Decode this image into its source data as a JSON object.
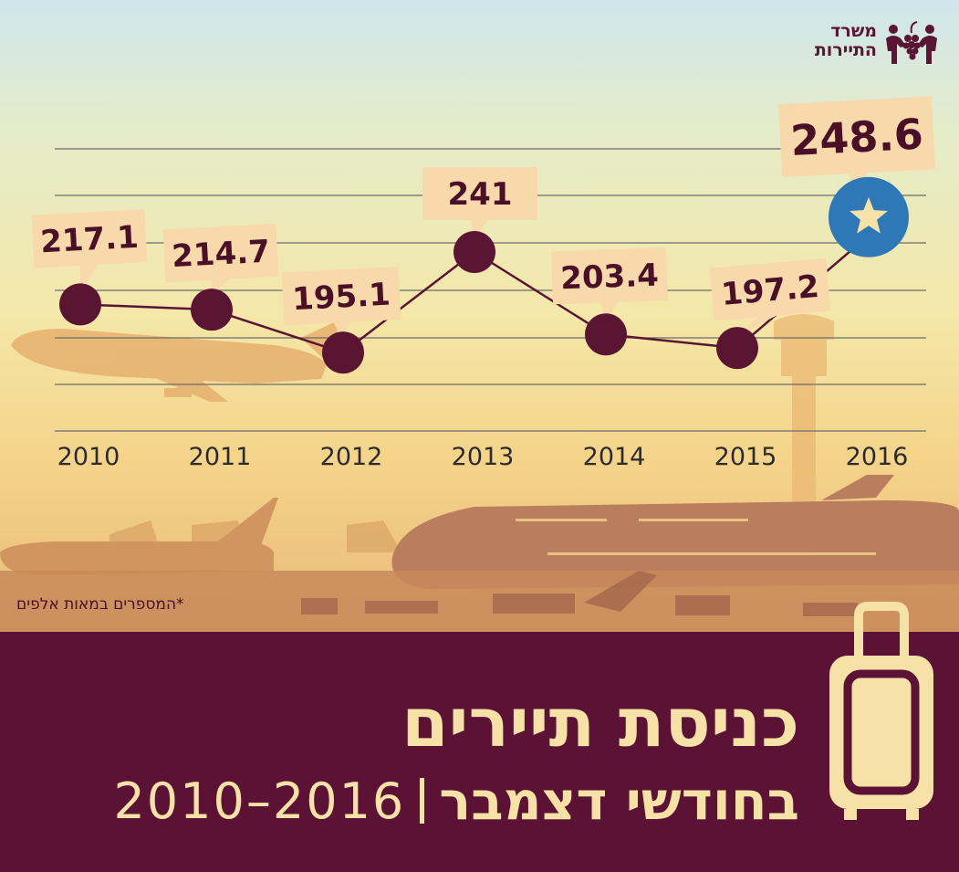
{
  "logo": {
    "line1": "משרד",
    "line2": "התיירות"
  },
  "chart_data": {
    "type": "line",
    "title": "כניסת תיירים",
    "subtitle": "בחודשי דצמבר",
    "year_range": "2010–2016",
    "categories": [
      "2010",
      "2011",
      "2012",
      "2013",
      "2014",
      "2015",
      "2016"
    ],
    "values": [
      217.1,
      214.7,
      195.1,
      241,
      203.4,
      197.2,
      248.6
    ],
    "labels": [
      "217.1",
      "214.7",
      "195.1",
      "241",
      "203.4",
      "197.2",
      "248.6"
    ],
    "footnote": "*המספרים במאות אלפים",
    "grid": true,
    "highlight_last": true
  },
  "colors": {
    "marker": "#5a1533",
    "highlight": "#2f78b8",
    "label_bg": "#f8d9ab",
    "banner": "#5b1234",
    "banner_text": "#f6e2a6"
  },
  "icons": [
    "star-icon",
    "suitcase-icon",
    "tourism-logo-icon"
  ]
}
